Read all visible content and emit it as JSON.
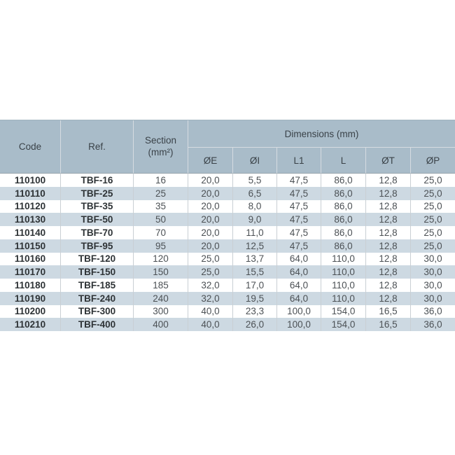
{
  "colors": {
    "header_bg": "#a9bcc9",
    "stripe_bg": "#cdd9e2",
    "grid_line_light": "#d6dce1",
    "grid_line_data": "#c9cfd4",
    "header_border": "#97a4ad"
  },
  "table": {
    "headers": {
      "code": "Code",
      "ref": "Ref.",
      "section": "Section\n(mm²)",
      "dimensions_group": "Dimensions (mm)",
      "dim_cols": [
        "ØE",
        "ØI",
        "L1",
        "L",
        "ØT",
        "ØP"
      ]
    },
    "rows": [
      {
        "code": "110100",
        "ref": "TBF-16",
        "section": "16",
        "dims": [
          "20,0",
          "5,5",
          "47,5",
          "86,0",
          "12,8",
          "25,0"
        ]
      },
      {
        "code": "110110",
        "ref": "TBF-25",
        "section": "25",
        "dims": [
          "20,0",
          "6,5",
          "47,5",
          "86,0",
          "12,8",
          "25,0"
        ]
      },
      {
        "code": "110120",
        "ref": "TBF-35",
        "section": "35",
        "dims": [
          "20,0",
          "8,0",
          "47,5",
          "86,0",
          "12,8",
          "25,0"
        ]
      },
      {
        "code": "110130",
        "ref": "TBF-50",
        "section": "50",
        "dims": [
          "20,0",
          "9,0",
          "47,5",
          "86,0",
          "12,8",
          "25,0"
        ]
      },
      {
        "code": "110140",
        "ref": "TBF-70",
        "section": "70",
        "dims": [
          "20,0",
          "11,0",
          "47,5",
          "86,0",
          "12,8",
          "25,0"
        ]
      },
      {
        "code": "110150",
        "ref": "TBF-95",
        "section": "95",
        "dims": [
          "20,0",
          "12,5",
          "47,5",
          "86,0",
          "12,8",
          "25,0"
        ]
      },
      {
        "code": "110160",
        "ref": "TBF-120",
        "section": "120",
        "dims": [
          "25,0",
          "13,7",
          "64,0",
          "110,0",
          "12,8",
          "30,0"
        ]
      },
      {
        "code": "110170",
        "ref": "TBF-150",
        "section": "150",
        "dims": [
          "25,0",
          "15,5",
          "64,0",
          "110,0",
          "12,8",
          "30,0"
        ]
      },
      {
        "code": "110180",
        "ref": "TBF-185",
        "section": "185",
        "dims": [
          "32,0",
          "17,0",
          "64,0",
          "110,0",
          "12,8",
          "30,0"
        ]
      },
      {
        "code": "110190",
        "ref": "TBF-240",
        "section": "240",
        "dims": [
          "32,0",
          "19,5",
          "64,0",
          "110,0",
          "12,8",
          "30,0"
        ]
      },
      {
        "code": "110200",
        "ref": "TBF-300",
        "section": "300",
        "dims": [
          "40,0",
          "23,3",
          "100,0",
          "154,0",
          "16,5",
          "36,0"
        ]
      },
      {
        "code": "110210",
        "ref": "TBF-400",
        "section": "400",
        "dims": [
          "40,0",
          "26,0",
          "100,0",
          "154,0",
          "16,5",
          "36,0"
        ]
      }
    ]
  }
}
